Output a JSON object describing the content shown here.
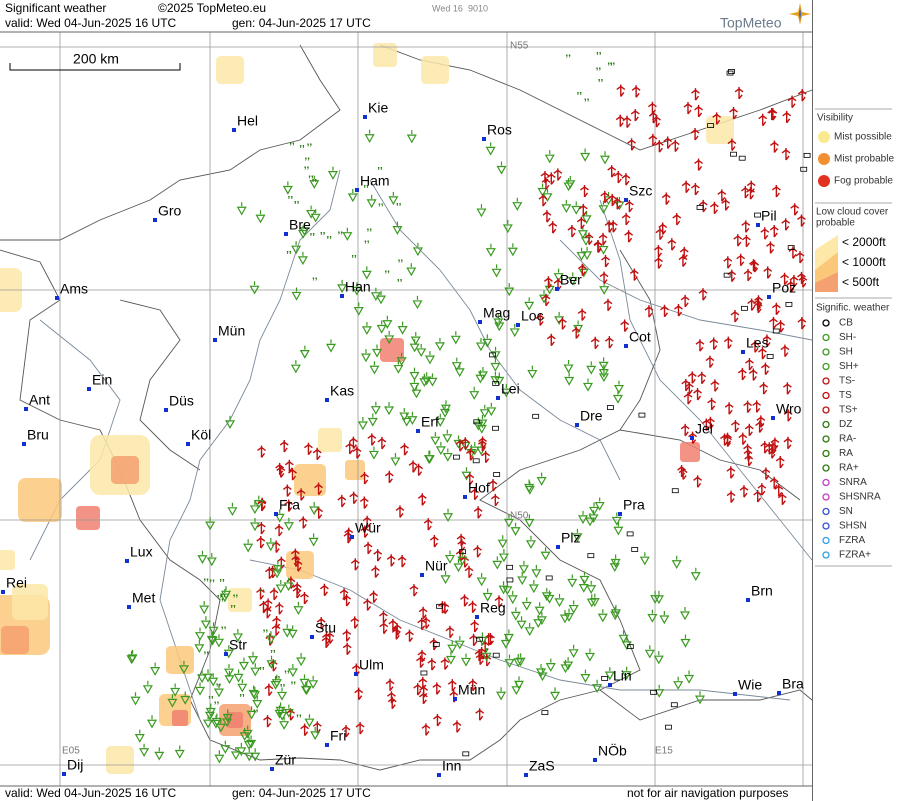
{
  "header": {
    "title": "Significant weather",
    "copyright": "©2025 TopMeteo.eu",
    "valid": "valid:  Wed  04-Jun-2025  16 UTC",
    "generated": "gen: 04-Jun-2025 17 UTC",
    "day": "Wed 16",
    "code": "9010",
    "logo": "TopMeteo"
  },
  "scale": "200 km",
  "grid_labels": [
    "N55",
    "N50",
    "E05",
    "E15"
  ],
  "cities": [
    "Hel",
    "Kie",
    "Ros",
    "Szc",
    "Pil",
    "Gro",
    "Ham",
    "Bre",
    "Ams",
    "Han",
    "Ber",
    "Poz",
    "Mag",
    "Loc",
    "Mün",
    "Cot",
    "Les",
    "Ein",
    "Kas",
    "Lei",
    "Ant",
    "Düs",
    "Wro",
    "Dre",
    "Erf",
    "Jel",
    "Bru",
    "Köl",
    "Hof",
    "Fra",
    "Pra",
    "Wür",
    "Plz",
    "Lux",
    "Nür",
    "Rei",
    "Met",
    "Brn",
    "Reg",
    "Stu",
    "Str",
    "Ulm",
    "Lin",
    "Mün",
    "Wie",
    "Bra",
    "Fri",
    "NÖb",
    "Dij",
    "Zür",
    "Inn",
    "ZaS"
  ],
  "legend": {
    "visibility": {
      "title": "Visibility",
      "items": [
        "Mist possible",
        "Mist probable",
        "Fog probable"
      ]
    },
    "low_cloud": {
      "title": [
        "Low cloud cover",
        "probable"
      ],
      "items": [
        "< 2000ft",
        "< 1000ft",
        "<  500ft"
      ]
    },
    "weather": {
      "title": "Signific. weather",
      "items": [
        "CB",
        "SH-",
        "SH",
        "SH+",
        "TS-",
        "TS",
        "TS+",
        "DZ",
        "RA-",
        "RA",
        "RA+",
        "SNRA",
        "SHSNRA",
        "SN",
        "SHSN",
        "FZRA",
        "FZRA+"
      ]
    }
  },
  "footer": {
    "valid": "valid:  Wed  04-Jun-2025  16 UTC",
    "generated": "gen: 04-Jun-2025 17 UTC",
    "note": "not for air navigation purposes"
  }
}
